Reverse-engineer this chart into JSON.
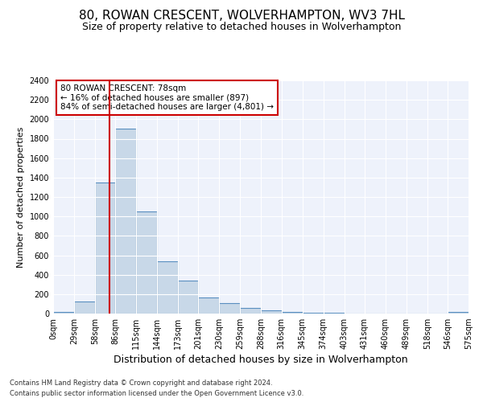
{
  "title": "80, ROWAN CRESCENT, WOLVERHAMPTON, WV3 7HL",
  "subtitle": "Size of property relative to detached houses in Wolverhampton",
  "xlabel": "Distribution of detached houses by size in Wolverhampton",
  "ylabel": "Number of detached properties",
  "bin_edges": [
    0,
    29,
    58,
    86,
    115,
    144,
    173,
    201,
    230,
    259,
    288,
    316,
    345,
    374,
    403,
    431,
    460,
    489,
    518,
    546,
    575
  ],
  "bin_labels": [
    "0sqm",
    "29sqm",
    "58sqm",
    "86sqm",
    "115sqm",
    "144sqm",
    "173sqm",
    "201sqm",
    "230sqm",
    "259sqm",
    "288sqm",
    "316sqm",
    "345sqm",
    "374sqm",
    "403sqm",
    "431sqm",
    "460sqm",
    "489sqm",
    "518sqm",
    "546sqm",
    "575sqm"
  ],
  "bar_heights": [
    20,
    125,
    1350,
    1900,
    1050,
    540,
    340,
    165,
    110,
    55,
    30,
    15,
    8,
    5,
    3,
    1,
    1,
    0,
    0,
    20
  ],
  "bar_color": "#c8d8e8",
  "bar_edge_color": "#5a8fc0",
  "bar_edge_width": 0.8,
  "property_size": 78,
  "red_line_color": "#cc0000",
  "annotation_line1": "80 ROWAN CRESCENT: 78sqm",
  "annotation_line2": "← 16% of detached houses are smaller (897)",
  "annotation_line3": "84% of semi-detached houses are larger (4,801) →",
  "annotation_box_edge_color": "#cc0000",
  "ylim": [
    0,
    2400
  ],
  "yticks": [
    0,
    200,
    400,
    600,
    800,
    1000,
    1200,
    1400,
    1600,
    1800,
    2000,
    2200,
    2400
  ],
  "background_color": "#eef2fb",
  "footer_line1": "Contains HM Land Registry data © Crown copyright and database right 2024.",
  "footer_line2": "Contains public sector information licensed under the Open Government Licence v3.0.",
  "title_fontsize": 11,
  "subtitle_fontsize": 9,
  "xlabel_fontsize": 9,
  "ylabel_fontsize": 8,
  "tick_fontsize": 7,
  "annotation_fontsize": 7.5,
  "footer_fontsize": 6
}
